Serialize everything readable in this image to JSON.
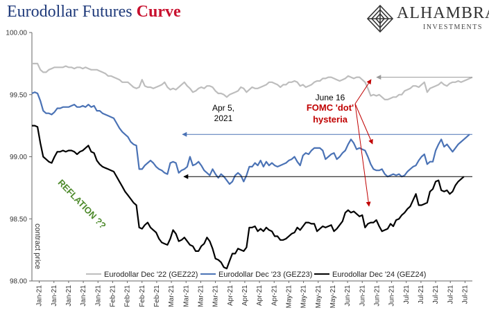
{
  "header": {
    "title_main": "Eurodollar Futures ",
    "title_accent": "Curve",
    "logo_name": "ALHAMBRA",
    "logo_sub": "INVESTMENTS"
  },
  "colors": {
    "title": "#1f3a7a",
    "accent": "#c8102e",
    "gez22": "#bdbdbd",
    "gez23": "#4a72b5",
    "gez24": "#000000",
    "reflation": "#4e8a2c",
    "fomc": "#c00000"
  },
  "annotations": {
    "apr5": [
      "Apr 5,",
      "2021"
    ],
    "june16": "June 16",
    "fomc": [
      "FOMC 'dot'",
      "hysteria"
    ],
    "reflation": "REFLATION ??",
    "contract_price": "contract price"
  },
  "chart_data": {
    "type": "line",
    "title": "Eurodollar Futures Curve",
    "ylabel": "contract price",
    "ylim": [
      98.0,
      100.0
    ],
    "yticks": [
      "98.00",
      "98.50",
      "99.00",
      "99.50",
      "100.00"
    ],
    "xtick_labels": [
      "Jan-21",
      "Jan-21",
      "Jan-21",
      "Jan-21",
      "Jan-21",
      "Feb-21",
      "Feb-21",
      "Feb-21",
      "Feb-21",
      "Mar-21",
      "Mar-21",
      "Mar-21",
      "Mar-21",
      "Apr-21",
      "Apr-21",
      "Apr-21",
      "Apr-21",
      "May-21",
      "May-21",
      "May-21",
      "May-21",
      "Jun-21",
      "Jun-21",
      "Jun-21",
      "Jun-21",
      "Jul-21",
      "Jul-21",
      "Jul-21",
      "Jul-21",
      "Jul-21"
    ],
    "grid": false,
    "legend": "bottom",
    "series": [
      {
        "name": "Eurodollar Dec '22 (GEZ22)",
        "color": "#bdbdbd",
        "values": [
          99.75,
          99.75,
          99.75,
          99.7,
          99.68,
          99.68,
          99.7,
          99.71,
          99.72,
          99.72,
          99.72,
          99.72,
          99.73,
          99.72,
          99.72,
          99.71,
          99.72,
          99.72,
          99.71,
          99.72,
          99.71,
          99.7,
          99.7,
          99.7,
          99.69,
          99.68,
          99.67,
          99.65,
          99.65,
          99.64,
          99.63,
          99.62,
          99.6,
          99.6,
          99.6,
          99.58,
          99.56,
          99.55,
          99.56,
          99.62,
          99.57,
          99.56,
          99.56,
          99.55,
          99.56,
          99.57,
          99.58,
          99.6,
          99.56,
          99.54,
          99.55,
          99.54,
          99.56,
          99.58,
          99.6,
          99.57,
          99.55,
          99.52,
          99.53,
          99.55,
          99.56,
          99.55,
          99.57,
          99.57,
          99.56,
          99.53,
          99.51,
          99.51,
          99.5,
          99.48,
          99.5,
          99.51,
          99.52,
          99.53,
          99.56,
          99.55,
          99.52,
          99.54,
          99.56,
          99.55,
          99.55,
          99.56,
          99.57,
          99.58,
          99.6,
          99.6,
          99.59,
          99.58,
          99.56,
          99.58,
          99.58,
          99.6,
          99.6,
          99.61,
          99.6,
          99.57,
          99.58,
          99.56,
          99.57,
          99.58,
          99.6,
          99.61,
          99.61,
          99.63,
          99.63,
          99.64,
          99.64,
          99.63,
          99.62,
          99.61,
          99.62,
          99.63,
          99.65,
          99.64,
          99.63,
          99.64,
          99.64,
          99.62,
          99.6,
          99.55,
          99.49,
          99.5,
          99.49,
          99.5,
          99.48,
          99.46,
          99.46,
          99.47,
          99.48,
          99.48,
          99.5,
          99.5,
          99.53,
          99.54,
          99.55,
          99.57,
          99.57,
          99.56,
          99.58,
          99.6,
          99.52,
          99.55,
          99.56,
          99.57,
          99.58,
          99.6,
          99.58,
          99.57,
          99.59,
          99.6,
          99.6,
          99.61,
          99.6,
          99.61,
          99.62,
          99.63,
          99.64
        ]
      },
      {
        "name": "Eurodollar Dec '23 (GEZ23)",
        "color": "#4a72b5",
        "values": [
          99.51,
          99.52,
          99.51,
          99.45,
          99.37,
          99.35,
          99.35,
          99.34,
          99.36,
          99.39,
          99.39,
          99.4,
          99.4,
          99.4,
          99.41,
          99.42,
          99.4,
          99.4,
          99.41,
          99.4,
          99.42,
          99.4,
          99.41,
          99.37,
          99.37,
          99.35,
          99.34,
          99.33,
          99.32,
          99.31,
          99.27,
          99.23,
          99.2,
          99.18,
          99.16,
          99.12,
          99.1,
          99.09,
          98.9,
          98.9,
          98.93,
          98.95,
          98.97,
          98.95,
          98.92,
          98.9,
          98.89,
          98.87,
          98.86,
          98.95,
          98.96,
          98.95,
          98.87,
          98.89,
          98.9,
          98.92,
          99.0,
          98.93,
          98.94,
          98.96,
          98.93,
          98.89,
          98.87,
          98.85,
          98.9,
          98.86,
          98.83,
          98.86,
          98.84,
          98.81,
          98.78,
          98.8,
          98.85,
          98.87,
          98.85,
          98.8,
          98.85,
          98.92,
          98.92,
          98.95,
          98.93,
          98.97,
          98.92,
          98.96,
          98.93,
          98.95,
          98.93,
          98.92,
          98.93,
          98.94,
          98.95,
          98.97,
          98.98,
          99.0,
          98.96,
          98.93,
          99.01,
          99.03,
          99.02,
          99.05,
          99.07,
          99.07,
          99.07,
          99.05,
          98.98,
          99.0,
          99.02,
          99.03,
          98.98,
          99.0,
          99.03,
          99.05,
          99.1,
          99.14,
          99.11,
          99.06,
          99.07,
          99.06,
          99.05,
          99.0,
          98.94,
          98.9,
          98.89,
          98.89,
          98.9,
          98.86,
          98.84,
          98.85,
          98.86,
          98.85,
          98.86,
          98.84,
          98.85,
          98.88,
          98.9,
          98.92,
          98.93,
          98.97,
          99.0,
          99.02,
          98.94,
          98.96,
          98.96,
          99.05,
          99.1,
          99.14,
          99.08,
          99.1,
          99.07,
          99.04,
          99.07,
          99.1,
          99.12,
          99.14,
          99.16,
          99.18
        ]
      },
      {
        "name": "Eurodollar Dec '24 (GEZ24)",
        "color": "#000000",
        "values": [
          99.25,
          99.25,
          99.24,
          99.11,
          99.0,
          98.98,
          98.96,
          98.95,
          99.0,
          99.04,
          99.04,
          99.05,
          99.04,
          99.05,
          99.05,
          99.04,
          99.02,
          99.04,
          99.05,
          99.07,
          99.09,
          99.04,
          99.03,
          98.97,
          98.94,
          98.92,
          98.91,
          98.9,
          98.89,
          98.88,
          98.84,
          98.8,
          98.76,
          98.72,
          98.69,
          98.66,
          98.63,
          98.61,
          98.43,
          98.42,
          98.45,
          98.47,
          98.43,
          98.41,
          98.39,
          98.34,
          98.31,
          98.3,
          98.29,
          98.34,
          98.41,
          98.38,
          98.32,
          98.33,
          98.35,
          98.32,
          98.29,
          98.28,
          98.24,
          98.24,
          98.28,
          98.3,
          98.35,
          98.32,
          98.26,
          98.18,
          98.17,
          98.15,
          98.11,
          98.1,
          98.16,
          98.22,
          98.22,
          98.26,
          98.25,
          98.24,
          98.27,
          98.43,
          98.43,
          98.44,
          98.4,
          98.42,
          98.4,
          98.43,
          98.41,
          98.4,
          98.36,
          98.36,
          98.33,
          98.33,
          98.34,
          98.36,
          98.38,
          98.39,
          98.43,
          98.41,
          98.44,
          98.47,
          98.47,
          98.46,
          98.46,
          98.4,
          98.42,
          98.44,
          98.43,
          98.44,
          98.45,
          98.4,
          98.42,
          98.45,
          98.48,
          98.55,
          98.57,
          98.55,
          98.56,
          98.54,
          98.52,
          98.53,
          98.43,
          98.46,
          98.47,
          98.47,
          98.49,
          98.44,
          98.4,
          98.41,
          98.42,
          98.46,
          98.44,
          98.49,
          98.5,
          98.53,
          98.55,
          98.58,
          98.6,
          98.65,
          98.7,
          98.61,
          98.61,
          98.62,
          98.63,
          98.72,
          98.74,
          98.8,
          98.81,
          98.73,
          98.72,
          98.73,
          98.7,
          98.72,
          98.77,
          98.8,
          98.82,
          98.84
        ]
      }
    ]
  }
}
